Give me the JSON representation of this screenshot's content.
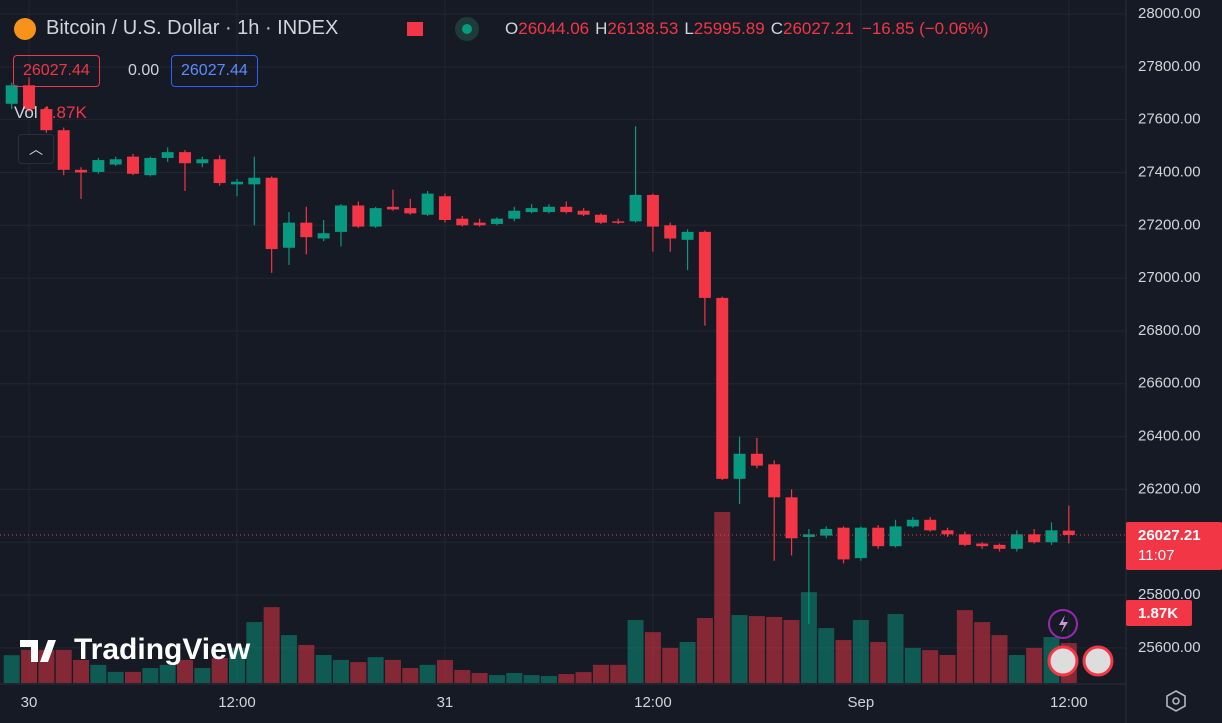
{
  "chart_data": {
    "type": "candlestick",
    "title": "Bitcoin / U.S. Dollar · 1h · INDEX",
    "legend": {
      "open_label": "O",
      "open": 26044.06,
      "high_label": "H",
      "high": 26138.53,
      "low_label": "L",
      "low": 25995.89,
      "close_label": "C",
      "close": 26027.21,
      "change": "−16.85 (−0.06%)"
    },
    "sell_price": 26027.44,
    "spread": "0.00",
    "buy_price": 26027.44,
    "volume_label": "Vol",
    "volume_value": "1.87K",
    "last_price_label": 26027.21,
    "countdown": "11:07",
    "last_volume_label": "1.87K",
    "logo": "TradingView",
    "categories": [
      null,
      "30",
      null,
      null,
      null,
      null,
      null,
      null,
      null,
      null,
      null,
      null,
      null,
      "12:00",
      null,
      null,
      null,
      null,
      null,
      null,
      null,
      null,
      null,
      null,
      null,
      "31",
      null,
      null,
      null,
      null,
      null,
      null,
      null,
      null,
      null,
      null,
      null,
      "12:00",
      null,
      null,
      null,
      null,
      null,
      null,
      null,
      null,
      null,
      null,
      null,
      "Sep",
      null,
      null,
      null,
      null,
      null,
      null,
      null,
      null,
      null,
      null,
      null,
      "12:00"
    ],
    "open": [
      27660,
      27730,
      27640,
      27560,
      27410,
      27402,
      27430,
      27460,
      27390,
      27455,
      27477,
      27435,
      27450,
      27355,
      27355,
      27380,
      27115,
      27210,
      27150,
      27175,
      27275,
      27195,
      27270,
      27265,
      27240,
      27310,
      27225,
      27210,
      27205,
      27225,
      27250,
      27250,
      27270,
      27255,
      27240,
      27215,
      27215,
      27315,
      27200,
      27145,
      27175,
      26925,
      26240,
      26335,
      26295,
      26170,
      26020,
      26025,
      26055,
      25940,
      26055,
      25985,
      26060,
      26085,
      26045,
      26030,
      25995,
      25990,
      25975,
      26030,
      26000,
      26044.06
    ],
    "high": [
      27740,
      27760,
      27650,
      27570,
      27420,
      27455,
      27460,
      27470,
      27460,
      27495,
      27485,
      27460,
      27465,
      27375,
      27460,
      27385,
      27250,
      27270,
      27220,
      27280,
      27290,
      27270,
      27335,
      27300,
      27330,
      27320,
      27235,
      27225,
      27230,
      27270,
      27280,
      27280,
      27290,
      27265,
      27245,
      27225,
      27575,
      27320,
      27210,
      27185,
      27180,
      26930,
      26400,
      26395,
      26310,
      26200,
      26050,
      26060,
      26060,
      26060,
      26065,
      26085,
      26095,
      26095,
      26055,
      26040,
      26000,
      25995,
      26045,
      26050,
      26075,
      26138.53
    ],
    "low": [
      27640,
      27630,
      27550,
      27390,
      27300,
      27395,
      27425,
      27390,
      27385,
      27440,
      27330,
      27420,
      27350,
      27310,
      27200,
      27020,
      27050,
      27090,
      27140,
      27120,
      27190,
      27190,
      27255,
      27240,
      27235,
      27210,
      27195,
      27195,
      27200,
      27215,
      27245,
      27245,
      27245,
      27235,
      27205,
      27205,
      27210,
      27100,
      27100,
      27030,
      26820,
      26235,
      26145,
      26280,
      25930,
      25950,
      25690,
      26015,
      25920,
      25930,
      25975,
      25980,
      26055,
      26040,
      26020,
      25985,
      25975,
      25965,
      25965,
      25995,
      25990,
      25995.89
    ],
    "close": [
      27730,
      27640,
      27560,
      27410,
      27400,
      27447,
      27450,
      27395,
      27455,
      27477,
      27435,
      27450,
      27360,
      27365,
      27380,
      27110,
      27210,
      27155,
      27170,
      27275,
      27195,
      27265,
      27260,
      27245,
      27320,
      27220,
      27200,
      27200,
      27225,
      27255,
      27265,
      27270,
      27250,
      27240,
      27210,
      27210,
      27315,
      27195,
      27150,
      27175,
      26925,
      26240,
      26335,
      26290,
      26170,
      26015,
      26030,
      26050,
      25935,
      26055,
      25985,
      26060,
      26085,
      26045,
      26030,
      25990,
      25985,
      25975,
      26030,
      26000,
      26045,
      26027.21
    ],
    "volume": [
      1300,
      1550,
      1550,
      1550,
      1080,
      850,
      520,
      520,
      700,
      850,
      1080,
      700,
      1170,
      1640,
      2850,
      3550,
      2240,
      1780,
      1310,
      1080,
      980,
      1210,
      1080,
      700,
      850,
      1080,
      610,
      470,
      370,
      470,
      370,
      330,
      420,
      510,
      850,
      850,
      2950,
      2380,
      1640,
      1920,
      3040,
      8000,
      3180,
      3130,
      3090,
      2950,
      4250,
      2570,
      2010,
      2950,
      1920,
      3230,
      1640,
      1540,
      1310,
      3410,
      2850,
      2240,
      1310,
      1640,
      2150,
      1870
    ],
    "up_color": "#089981",
    "down_color": "#f23645",
    "ylim": [
      25467,
      28053
    ],
    "yticks": [
      {
        "value": 28000,
        "label": "28000.00"
      },
      {
        "value": 27800,
        "label": "27800.00"
      },
      {
        "value": 27600,
        "label": "27600.00"
      },
      {
        "value": 27400,
        "label": "27400.00"
      },
      {
        "value": 27200,
        "label": "27200.00"
      },
      {
        "value": 27000,
        "label": "27000.00"
      },
      {
        "value": 26800,
        "label": "26800.00"
      },
      {
        "value": 26600,
        "label": "26600.00"
      },
      {
        "value": 26400,
        "label": "26400.00"
      },
      {
        "value": 26200,
        "label": "26200.00"
      },
      {
        "value": 26000,
        "label": "26000.00"
      },
      {
        "value": 25800,
        "label": "25800.00"
      },
      {
        "value": 25600,
        "label": "25600.00"
      }
    ],
    "grid": true
  }
}
